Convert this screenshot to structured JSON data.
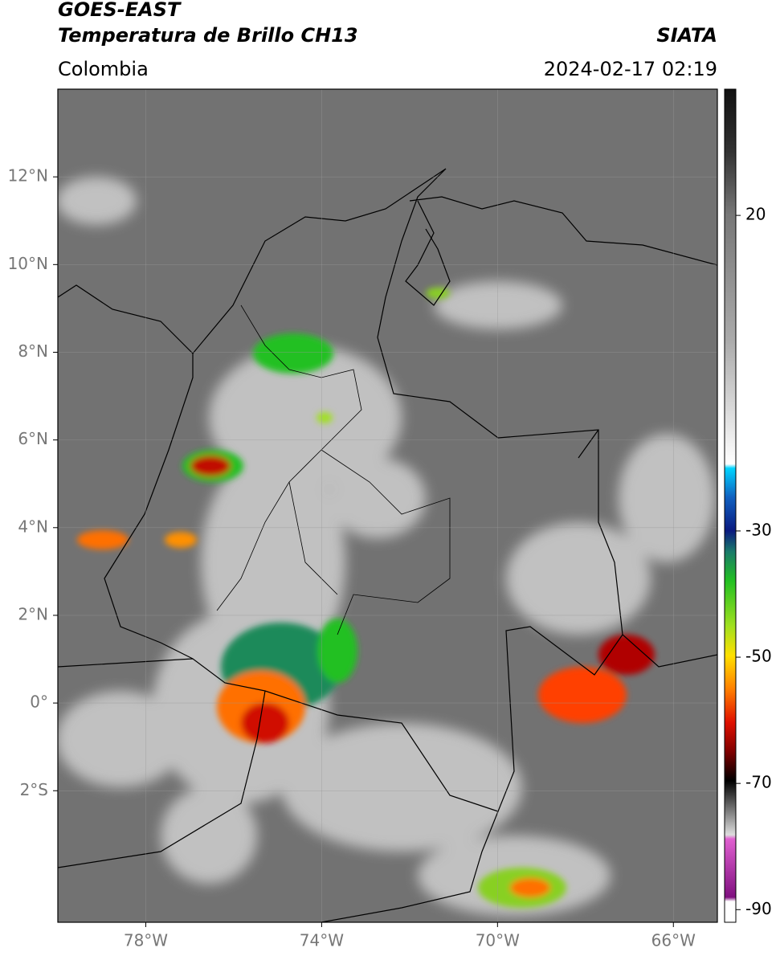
{
  "header": {
    "title_line1": "GOES-EAST",
    "title_line2": "Temperatura de Brillo CH13",
    "source": "SIATA",
    "region": "Colombia",
    "timestamp": "2024-02-17 02:19"
  },
  "map": {
    "xlim": [
      -80,
      -65
    ],
    "ylim": [
      -5,
      14
    ],
    "xticks": [
      {
        "value": -78,
        "label": "78°W"
      },
      {
        "value": -74,
        "label": "74°W"
      },
      {
        "value": -70,
        "label": "70°W"
      },
      {
        "value": -66,
        "label": "66°W"
      }
    ],
    "yticks": [
      {
        "value": 12,
        "label": "12°N"
      },
      {
        "value": 10,
        "label": "10°N"
      },
      {
        "value": 8,
        "label": "8°N"
      },
      {
        "value": 6,
        "label": "6°N"
      },
      {
        "value": 4,
        "label": "4°N"
      },
      {
        "value": 2,
        "label": "2°N"
      },
      {
        "value": 0,
        "label": "0°"
      },
      {
        "value": -2,
        "label": "2°S"
      }
    ],
    "grid": true
  },
  "colorbar": {
    "lim": [
      -92,
      40
    ],
    "ticks": [
      20,
      -30,
      -50,
      -70,
      -90
    ]
  }
}
